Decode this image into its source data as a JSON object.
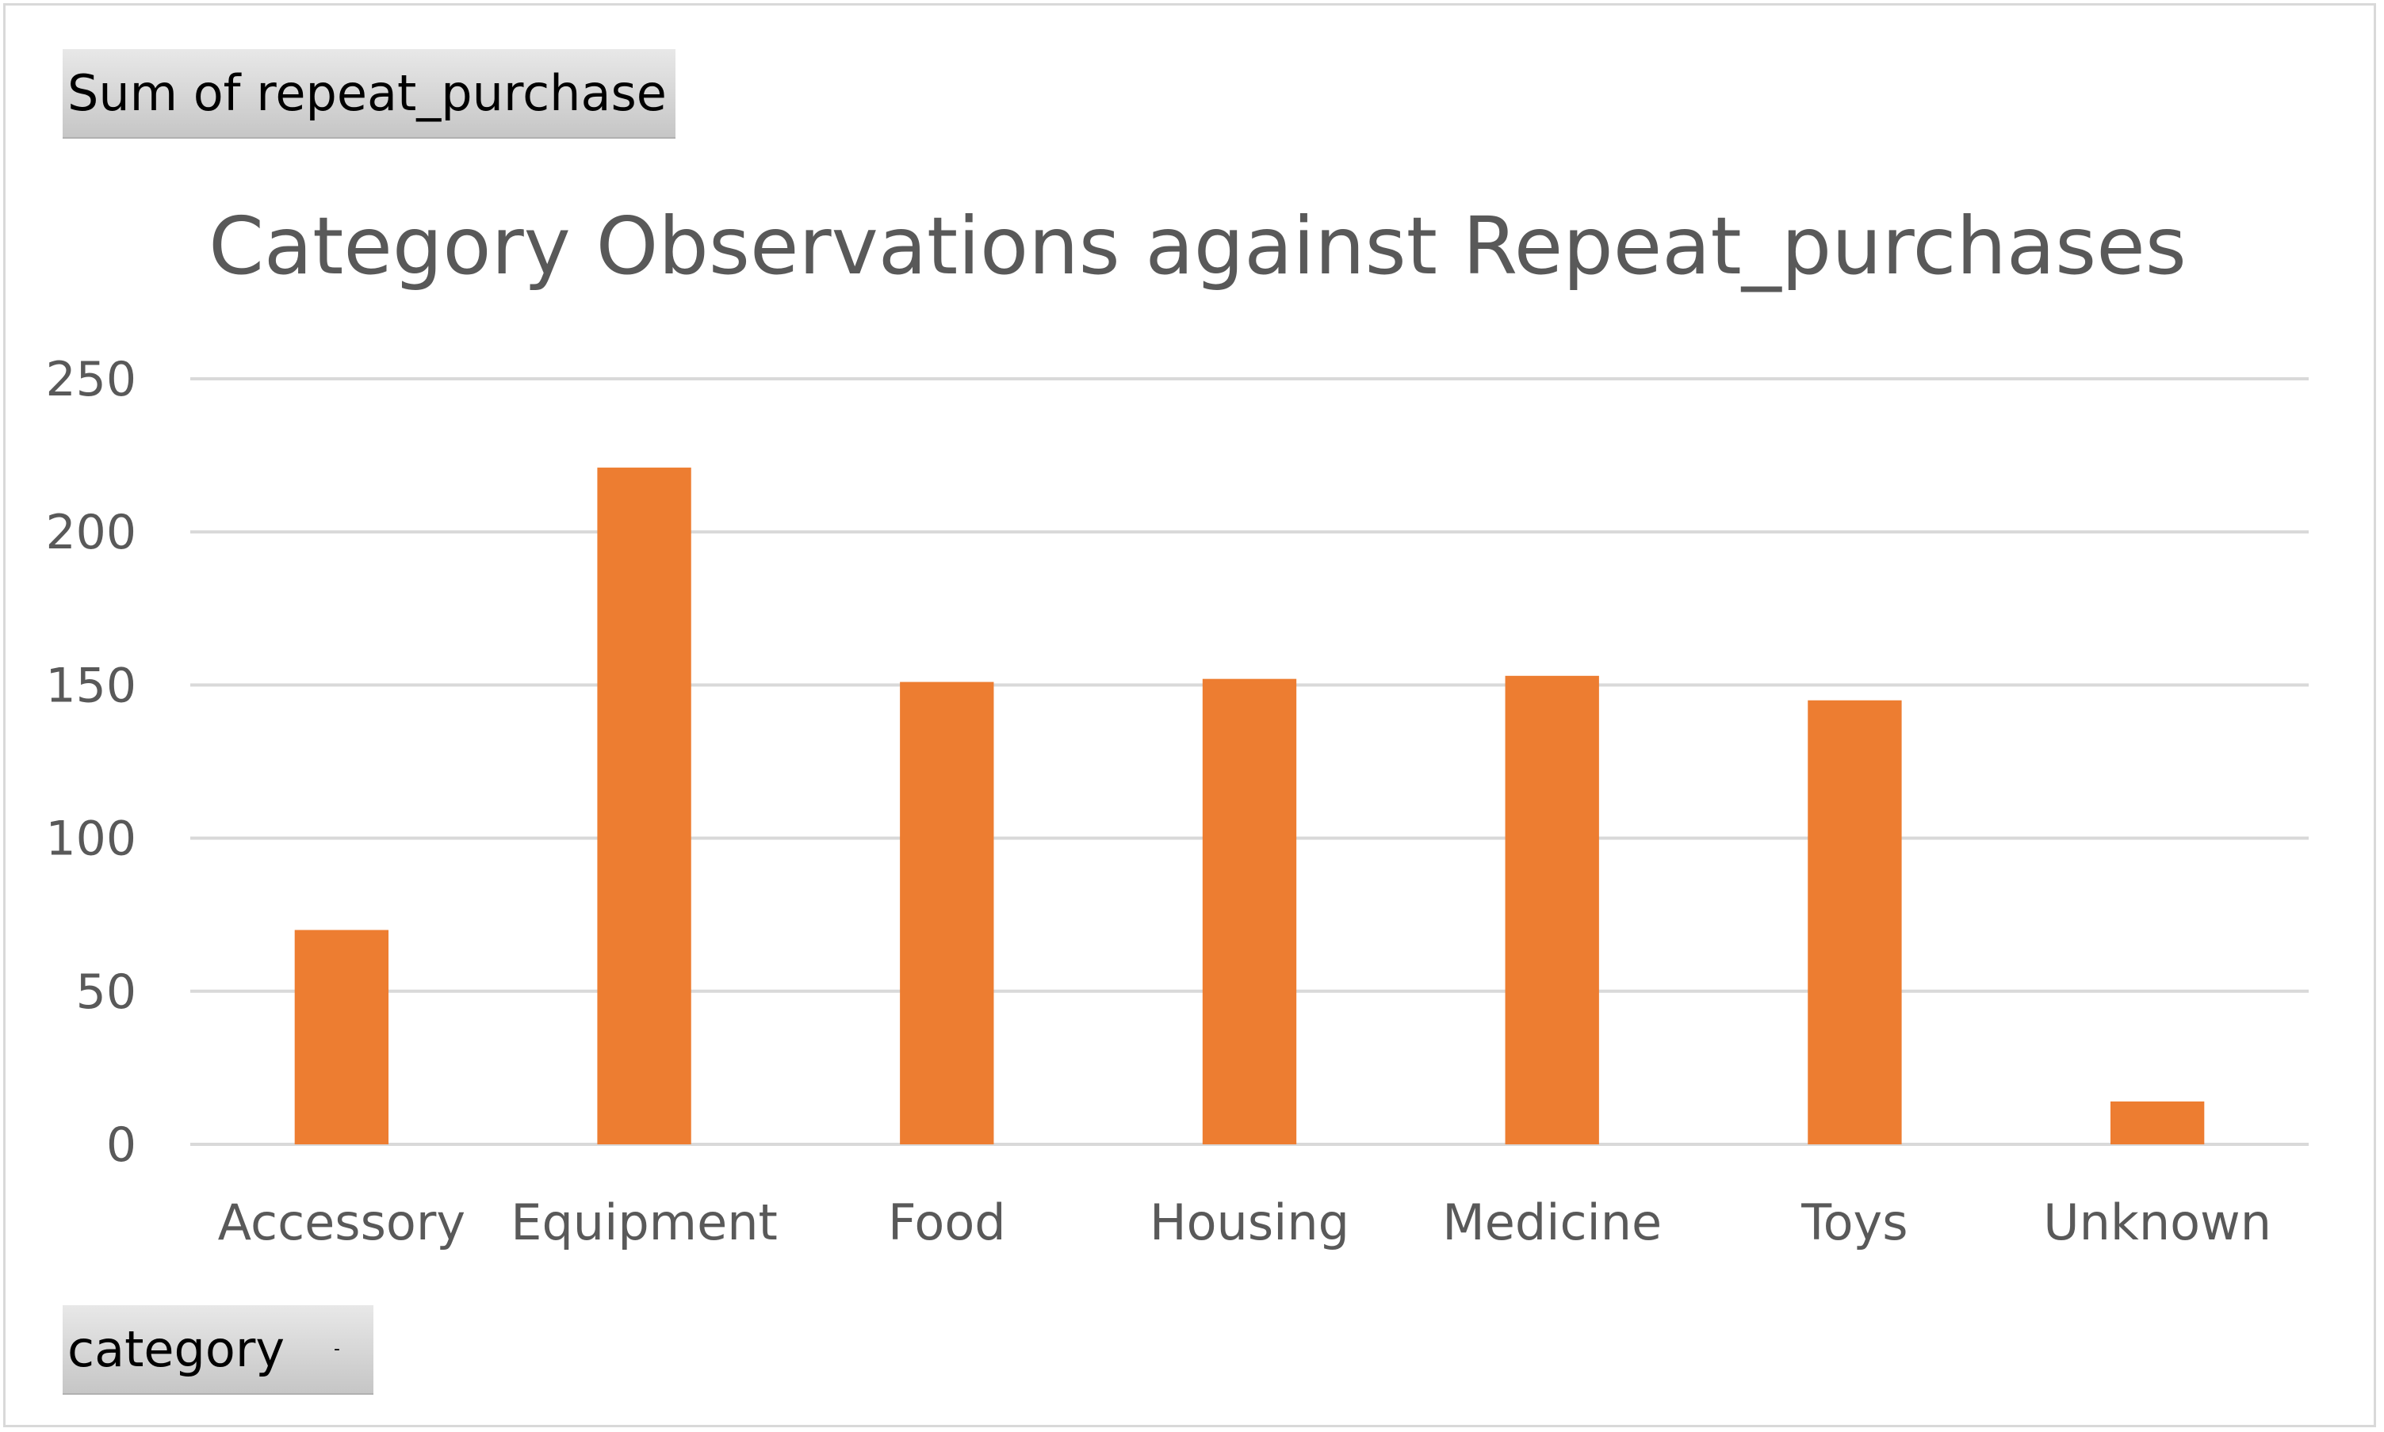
{
  "value_field_button": {
    "label": "Sum of repeat_purchase"
  },
  "axis_field_button": {
    "label": "category",
    "dropdown_glyph": "-"
  },
  "chart_data": {
    "type": "bar",
    "title": "Category Observations against Repeat_purchases",
    "categories": [
      "Accessory",
      "Equipment",
      "Food",
      "Housing",
      "Medicine",
      "Toys",
      "Unknown"
    ],
    "series": [
      {
        "values": [
          70,
          221,
          151,
          152,
          153,
          145,
          14
        ]
      }
    ],
    "ylim": [
      0,
      250
    ],
    "yticks": [
      0,
      50,
      100,
      150,
      200,
      250
    ],
    "xlabel": "",
    "ylabel": "",
    "grid": true,
    "legend": "none",
    "bar_color": "#ed7d31"
  }
}
